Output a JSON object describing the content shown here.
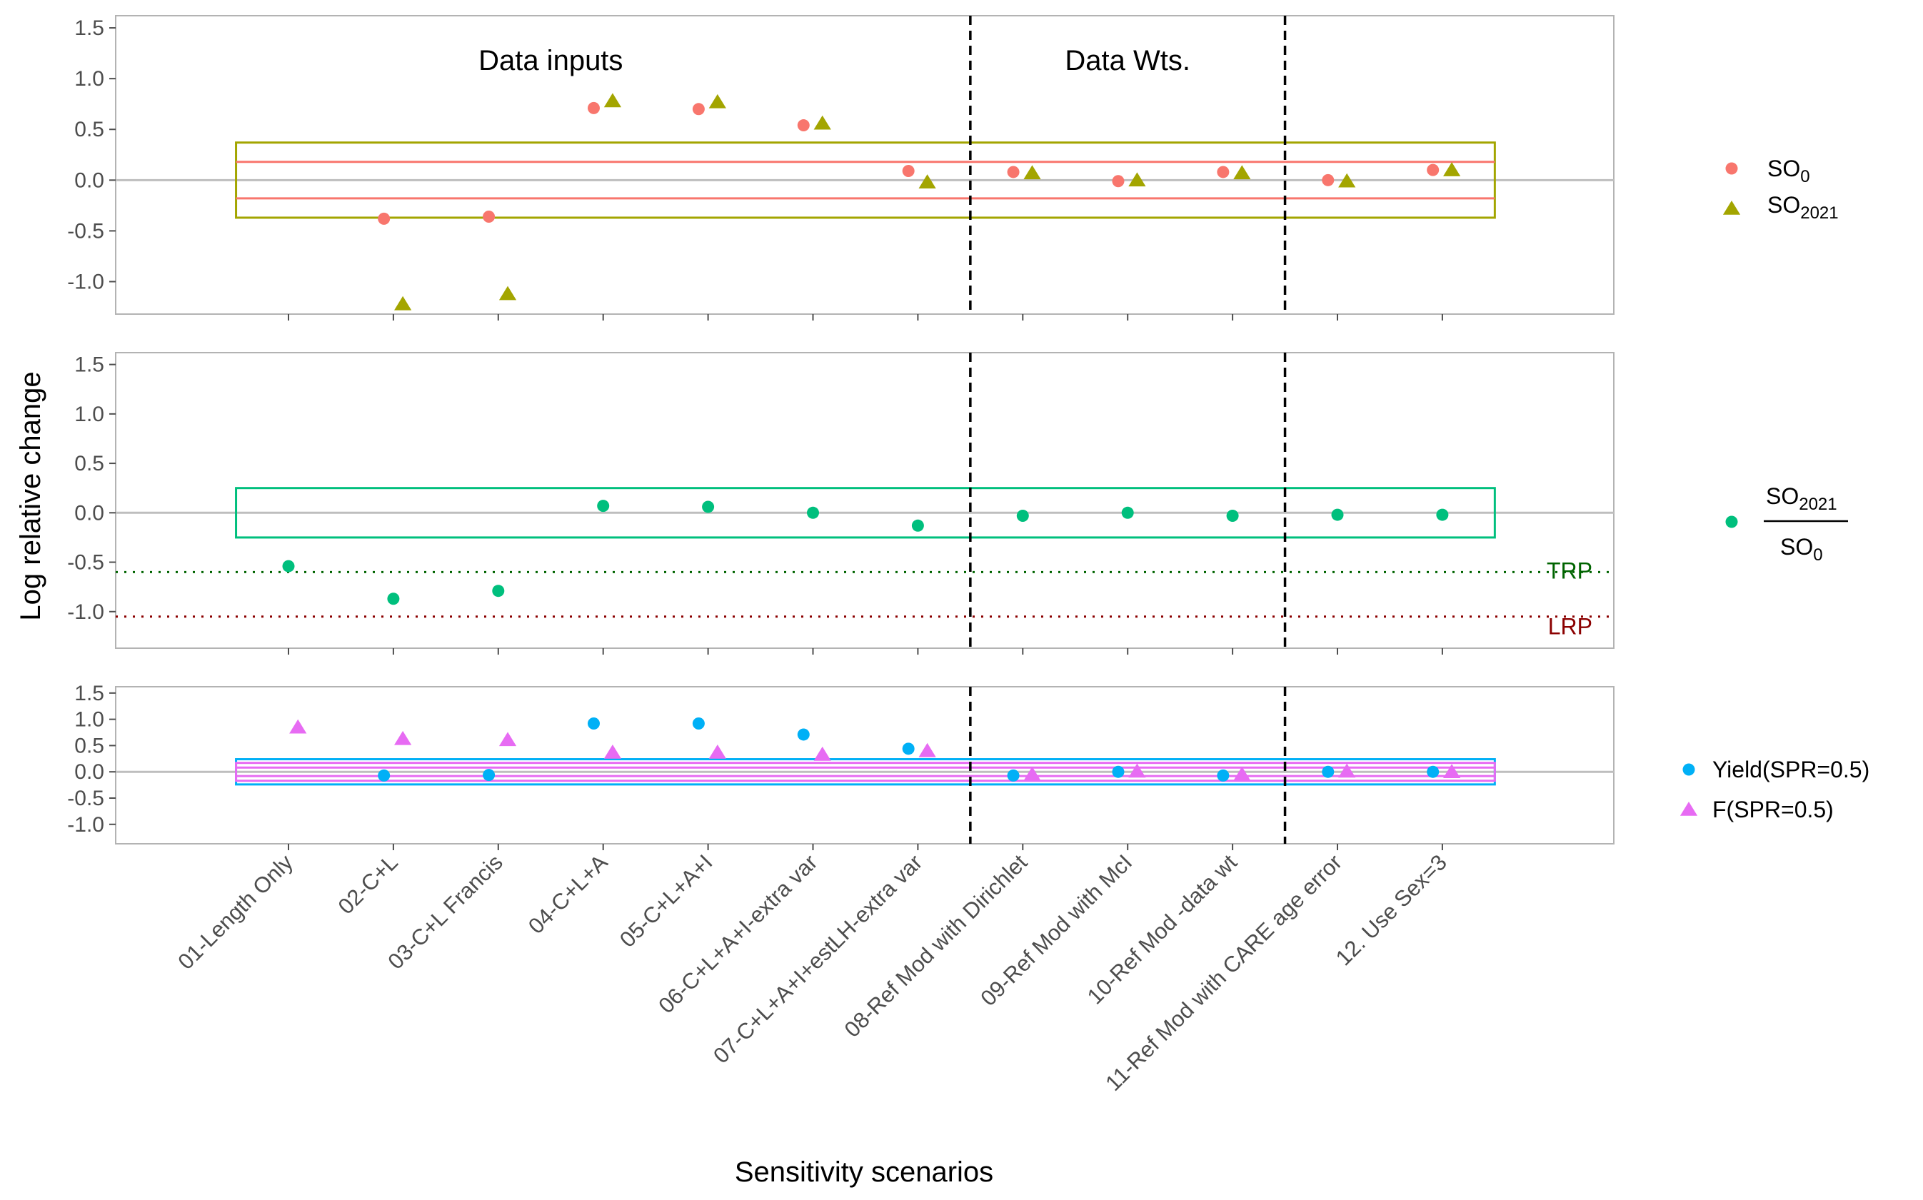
{
  "chart_data": {
    "type": "scatter",
    "xlabel": "Sensitivity scenarios",
    "ylabel": "Log relative change",
    "categories": [
      "01-Length Only",
      "02-C+L",
      "03-C+L Francis",
      "04-C+L+A",
      "05-C+L+A+I",
      "06-C+L+A+I-extra var",
      "07-C+L+A+I+estLH-extra var",
      "08-Ref Mod with Dirichlet",
      "09-Ref Mod with McI",
      "10-Ref Mod -data wt",
      "11-Ref Mod with CARE age error",
      "12. Use Sex=3"
    ],
    "section_labels": [
      "Data inputs",
      "Data Wts."
    ],
    "divider_after_index": [
      6.5,
      9.5
    ],
    "colors": {
      "red": "#F8766D",
      "olive": "#A3A500",
      "green": "#00BF7D",
      "blue": "#00B0F6",
      "pink": "#E76BF3",
      "trp": "#006400",
      "lrp": "#8B0000",
      "zero": "#bebebe"
    },
    "panels": [
      {
        "name": "spawning-output",
        "yticks": [
          -1.0,
          -0.5,
          0.0,
          0.5,
          1.0,
          1.5
        ],
        "ylim": [
          -1.32,
          1.62
        ],
        "band_rects": [
          {
            "lo": -0.37,
            "hi": 0.37,
            "color": "olive"
          }
        ],
        "band_lines": [
          {
            "value": 0.18,
            "color": "red"
          },
          {
            "value": -0.18,
            "color": "red"
          }
        ],
        "series": [
          {
            "name": "SO",
            "sub": "0",
            "marker": "circle",
            "color": "red",
            "offset": -0.09,
            "values": [
              null,
              -0.38,
              -0.36,
              0.71,
              0.7,
              0.54,
              0.09,
              0.08,
              -0.01,
              0.08,
              0.0,
              0.1
            ]
          },
          {
            "name": "SO",
            "sub": "2021",
            "marker": "triangle",
            "color": "olive",
            "offset": 0.09,
            "values": [
              null,
              -1.22,
              -1.12,
              0.78,
              0.77,
              0.56,
              -0.02,
              0.07,
              0.0,
              0.07,
              -0.01,
              0.1
            ]
          }
        ]
      },
      {
        "name": "depletion",
        "yticks": [
          -1.0,
          -0.5,
          0.0,
          0.5,
          1.0,
          1.5
        ],
        "ylim": [
          -1.37,
          1.62
        ],
        "band_rects": [
          {
            "lo": -0.25,
            "hi": 0.25,
            "color": "green"
          }
        ],
        "band_lines": [],
        "ref_lines": [
          {
            "label": "TRP",
            "value": -0.6,
            "color": "trp"
          },
          {
            "label": "LRP",
            "value": -1.05,
            "color": "lrp"
          }
        ],
        "series": [
          {
            "name": "depletion",
            "num": "SO",
            "num_sub": "2021",
            "den": "SO",
            "den_sub": "0",
            "marker": "circle",
            "color": "green",
            "offset": 0,
            "values": [
              -0.54,
              -0.87,
              -0.79,
              0.07,
              0.06,
              0.0,
              -0.13,
              -0.03,
              0.0,
              -0.03,
              -0.02,
              -0.02
            ]
          }
        ]
      },
      {
        "name": "yield-f",
        "yticks": [
          -1.0,
          -0.5,
          0.0,
          0.5,
          1.0,
          1.5
        ],
        "ylim": [
          -1.37,
          1.62
        ],
        "band_rects": [
          {
            "lo": -0.24,
            "hi": 0.24,
            "color": "blue"
          },
          {
            "lo": -0.17,
            "hi": 0.17,
            "color": "pink"
          }
        ],
        "band_lines": [
          {
            "value": 0.08,
            "color": "pink"
          },
          {
            "value": -0.08,
            "color": "pink"
          }
        ],
        "series": [
          {
            "name": "Yield(SPR=0.5)",
            "marker": "circle",
            "color": "blue",
            "offset": -0.09,
            "values": [
              null,
              -0.07,
              -0.06,
              0.92,
              0.92,
              0.71,
              0.44,
              -0.07,
              0.0,
              -0.07,
              0.0,
              0.0
            ]
          },
          {
            "name": "F(SPR=0.5)",
            "marker": "triangle",
            "color": "pink",
            "offset": 0.09,
            "values": [
              0.85,
              0.63,
              0.61,
              0.37,
              0.37,
              0.33,
              0.4,
              -0.05,
              0.01,
              -0.05,
              0.01,
              0.0
            ]
          }
        ]
      }
    ]
  }
}
